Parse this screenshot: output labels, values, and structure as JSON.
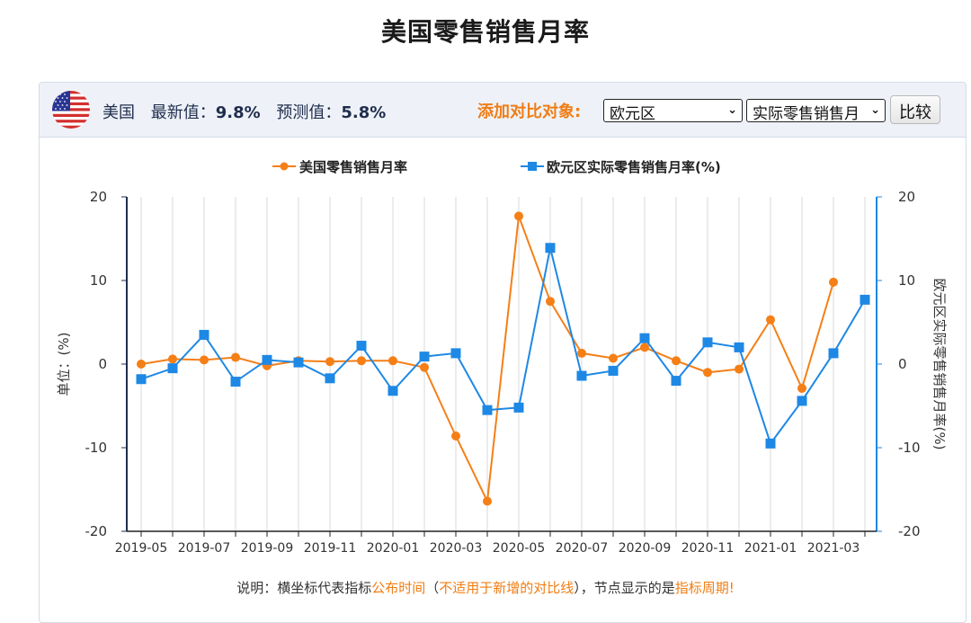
{
  "title": "美国零售销售月率",
  "info": {
    "country": "美国",
    "latest_label": "最新值：",
    "latest_value": "9.8%",
    "forecast_label": "预测值：",
    "forecast_value": "5.8%",
    "flag_icon": "us-flag-icon"
  },
  "compare": {
    "label": "添加对比对象:",
    "region_value": "欧元区",
    "indicator_value": "实际零售销售月",
    "button_label": "比较"
  },
  "note": {
    "prefix": "说明：横坐标代表指标",
    "hl1": "公布时间",
    "mid1": "（",
    "hl2": "不适用于新增的对比线",
    "mid2": "），节点显示的是",
    "hl3": "指标周期!"
  },
  "colors": {
    "us_series": "#f57f17",
    "eu_series": "#1e88e5",
    "left_axis": "#1f2d4d",
    "right_axis": "#1e88e5"
  },
  "chart_data": {
    "type": "line",
    "x": [
      "2019-05",
      "2019-06",
      "2019-07",
      "2019-08",
      "2019-09",
      "2019-10",
      "2019-11",
      "2019-12",
      "2020-01",
      "2020-02",
      "2020-03",
      "2020-04",
      "2020-05",
      "2020-06",
      "2020-07",
      "2020-08",
      "2020-09",
      "2020-10",
      "2020-11",
      "2020-12",
      "2021-01",
      "2021-02",
      "2021-03",
      "2021-04"
    ],
    "x_tick_labels": [
      "2019-05",
      "2019-07",
      "2019-09",
      "2019-11",
      "2020-01",
      "2020-03",
      "2020-05",
      "2020-07",
      "2020-09",
      "2020-11",
      "2021-01",
      "2021-03"
    ],
    "series": [
      {
        "name": "美国零售销售月率",
        "axis": "left",
        "marker": "circle",
        "values": [
          0.0,
          0.6,
          0.5,
          0.8,
          -0.2,
          0.4,
          0.3,
          0.4,
          0.4,
          -0.4,
          -8.6,
          -16.4,
          17.7,
          7.5,
          1.3,
          0.7,
          2.0,
          0.4,
          -1.0,
          -0.6,
          5.3,
          -2.9,
          9.8,
          null
        ]
      },
      {
        "name": "欧元区实际零售销售月率(%)",
        "axis": "right",
        "marker": "square",
        "values": [
          -1.8,
          -0.5,
          3.5,
          -2.1,
          0.5,
          0.2,
          -1.7,
          2.2,
          -3.2,
          0.9,
          1.3,
          -5.5,
          -5.2,
          13.9,
          -1.4,
          -0.8,
          3.1,
          -2.0,
          2.6,
          2.0,
          -9.5,
          -4.4,
          1.3,
          7.7
        ]
      }
    ],
    "ylabel": "单位：(%)",
    "y2label": "欧元区实际零售销售月率(%)",
    "ylim": [
      -20,
      20
    ],
    "y2lim": [
      -20,
      20
    ],
    "yticks": [
      -20,
      -10,
      0,
      10,
      20
    ],
    "grid": "vertical"
  }
}
